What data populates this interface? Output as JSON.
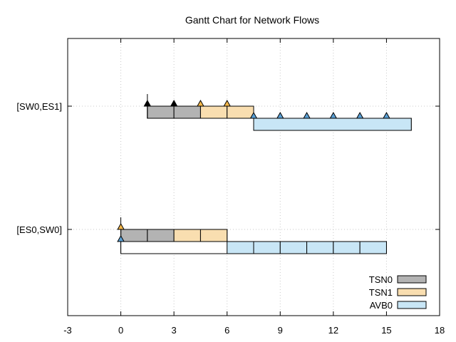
{
  "chart_data": {
    "type": "gantt",
    "title": "Gantt Chart for Network Flows",
    "xlabel": "",
    "ylabel": "",
    "xlim": [
      -3,
      18
    ],
    "x_ticks": [
      "-3",
      "0",
      "3",
      "6",
      "9",
      "12",
      "15",
      "18"
    ],
    "y_categories": [
      "[SW0,ES1]",
      "[ES0,SW0]"
    ],
    "grid": true,
    "legend_position": "bottom-right",
    "series": [
      {
        "name": "TSN0",
        "color": "#b3b3b3",
        "marker_color": "#000000"
      },
      {
        "name": "TSN1",
        "color": "#f9deb0",
        "marker_color": "#f3b648"
      },
      {
        "name": "AVB0",
        "color": "#c8e6f6",
        "marker_color": "#5a9fd4"
      }
    ],
    "rows": [
      {
        "link": "[SW0,ES1]",
        "lanes": [
          {
            "outline_range": [
              1.5,
              7.5
            ],
            "segments": [
              {
                "series": "TSN0",
                "start": 1.5,
                "end": 3.0
              },
              {
                "series": "TSN0",
                "start": 3.0,
                "end": 4.5
              },
              {
                "series": "TSN1",
                "start": 4.5,
                "end": 6.0
              },
              {
                "series": "TSN1",
                "start": 6.0,
                "end": 7.5
              }
            ],
            "markers": [
              {
                "series": "TSN0",
                "x": 1.5
              },
              {
                "series": "TSN0",
                "x": 3.0
              },
              {
                "series": "TSN1",
                "x": 4.5
              },
              {
                "series": "TSN1",
                "x": 6.0
              }
            ]
          },
          {
            "outline_range": [
              7.5,
              16.4
            ],
            "segments": [
              {
                "series": "AVB0",
                "start": 7.5,
                "end": 16.4
              }
            ],
            "markers": [
              {
                "series": "AVB0",
                "x": 7.5
              },
              {
                "series": "AVB0",
                "x": 9.0
              },
              {
                "series": "AVB0",
                "x": 10.5
              },
              {
                "series": "AVB0",
                "x": 12.0
              },
              {
                "series": "AVB0",
                "x": 13.5
              },
              {
                "series": "AVB0",
                "x": 15.0
              }
            ]
          }
        ]
      },
      {
        "link": "[ES0,SW0]",
        "lanes": [
          {
            "outline_range": [
              0.0,
              6.0
            ],
            "segments": [
              {
                "series": "TSN0",
                "start": 0.0,
                "end": 1.5
              },
              {
                "series": "TSN0",
                "start": 1.5,
                "end": 3.0
              },
              {
                "series": "TSN1",
                "start": 3.0,
                "end": 4.5
              },
              {
                "series": "TSN1",
                "start": 4.5,
                "end": 6.0
              }
            ],
            "markers": [
              {
                "series": "TSN1",
                "x": 0.0
              }
            ]
          },
          {
            "outline_range": [
              0.0,
              15.0
            ],
            "segments": [
              {
                "series": "AVB0",
                "start": 6.0,
                "end": 7.5
              },
              {
                "series": "AVB0",
                "start": 7.5,
                "end": 9.0
              },
              {
                "series": "AVB0",
                "start": 9.0,
                "end": 10.5
              },
              {
                "series": "AVB0",
                "start": 10.5,
                "end": 12.0
              },
              {
                "series": "AVB0",
                "start": 12.0,
                "end": 13.5
              },
              {
                "series": "AVB0",
                "start": 13.5,
                "end": 15.0
              }
            ],
            "markers": [
              {
                "series": "AVB0",
                "x": 0.0
              }
            ]
          }
        ]
      }
    ]
  }
}
